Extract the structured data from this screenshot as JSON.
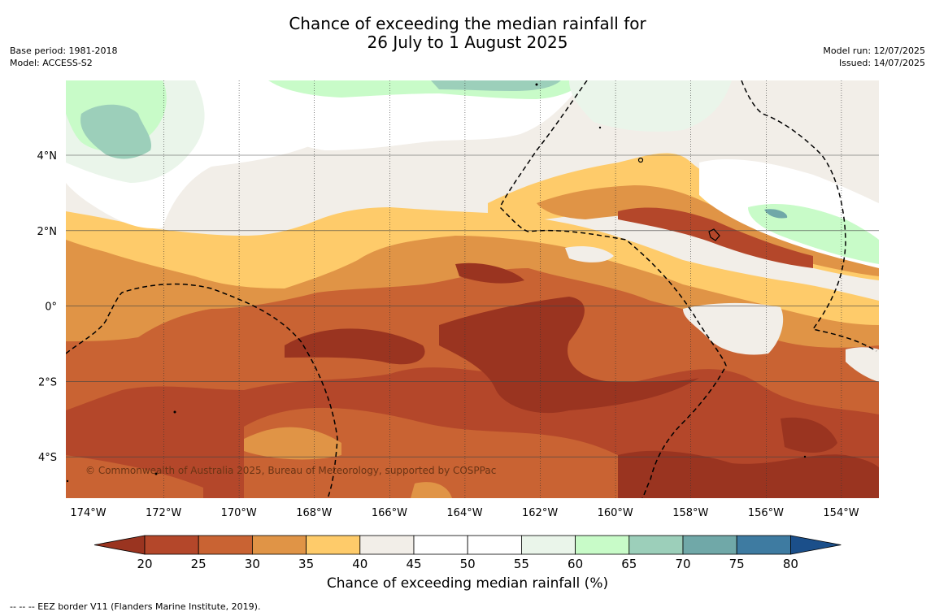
{
  "title": {
    "line1": "Chance of exceeding the median rainfall for",
    "line2": "26 July to 1 August 2025"
  },
  "meta_left": {
    "base_period": "Base period: 1981-2018",
    "model": "Model: ACCESS-S2"
  },
  "meta_right": {
    "model_run": "Model run: 12/07/2025",
    "issued": "Issued: 14/07/2025"
  },
  "map": {
    "lon_ticks": [
      "174°W",
      "172°W",
      "170°W",
      "168°W",
      "166°W",
      "164°W",
      "162°W",
      "160°W",
      "158°W",
      "156°W",
      "154°W"
    ],
    "lat_ticks": [
      "4°N",
      "2°N",
      "0°",
      "2°S",
      "4°S"
    ],
    "copyright": "© Commonwealth of Australia 2025, Bureau of Meteorology, supported by COSPPac"
  },
  "colorbar": {
    "ticks": [
      "20",
      "25",
      "30",
      "35",
      "40",
      "45",
      "50",
      "55",
      "60",
      "65",
      "70",
      "75",
      "80"
    ],
    "colors": [
      "#b4472a",
      "#c96333",
      "#e09446",
      "#fecb6a",
      "#f2eee8",
      "#ffffff",
      "#ffffff",
      "#eaf5ea",
      "#c8fbc8",
      "#9ccfba",
      "#70a8a8",
      "#3e7ba1"
    ],
    "under_color": "#9a3420",
    "over_color": "#1b4f8a",
    "label": "Chance of exceeding median rainfall (%)"
  },
  "footnote": "--  --  -- EEZ border V11 (Flanders Marine Institute, 2019)."
}
